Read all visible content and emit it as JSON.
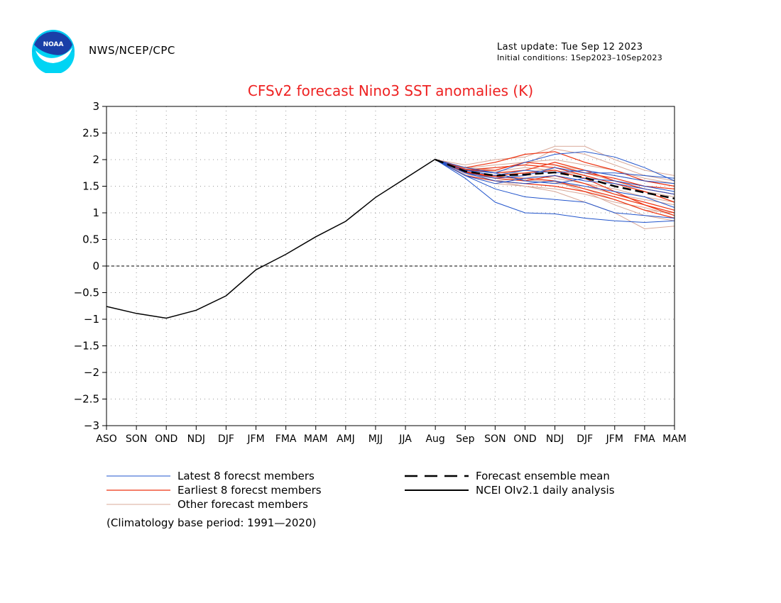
{
  "header": {
    "organization": "NWS/NCEP/CPC",
    "last_update": "Last update: Tue Sep 12 2023",
    "initial_conditions": "Initial conditions: 1Sep2023–10Sep2023",
    "logo_text": "NOAA",
    "logo_icon": "noaa-logo-icon"
  },
  "footnote": "(Climatology base period: 1991—2020)",
  "colors": {
    "title": "#ee2222",
    "latest": "#2255cc",
    "earliest": "#ee3311",
    "other": "#d8a898",
    "mean": "#000000",
    "analysis": "#000000"
  },
  "legend": {
    "placement": "bottom",
    "latest": "Latest 8 forecst members",
    "earliest": "Earliest 8 forecst members",
    "other": "Other forecast members",
    "mean": "Forecast ensemble mean",
    "analysis": "NCEI OIv2.1 daily analysis"
  },
  "chart_data": {
    "type": "line",
    "title": "CFSv2 forecast Nino3 SST anomalies (K)",
    "xlabel": "",
    "ylabel": "",
    "ylim": [
      -3,
      3
    ],
    "y_ticks": [
      3,
      2.5,
      2,
      1.5,
      1,
      0.5,
      0,
      -0.5,
      -1,
      -1.5,
      -2,
      -2.5,
      -3
    ],
    "y_tick_labels": [
      "3",
      "2.5",
      "2",
      "1.5",
      "1",
      "0.5",
      "0",
      "−0.5",
      "−1",
      "−1.5",
      "−2",
      "−2.5",
      "−3"
    ],
    "categories": [
      "ASO",
      "SON",
      "OND",
      "NDJ",
      "DJF",
      "JFM",
      "FMA",
      "MAM",
      "AMJ",
      "MJJ",
      "JJA",
      "Aug",
      "Sep",
      "SON",
      "OND",
      "NDJ",
      "DJF",
      "JFM",
      "FMA",
      "MAM"
    ],
    "grid": true,
    "zero_line": true,
    "analysis": [
      -0.76,
      -0.89,
      -0.98,
      -0.83,
      -0.56,
      -0.07,
      0.22,
      0.55,
      0.84,
      1.29,
      1.65,
      2.01
    ],
    "forecast_start_index": 11,
    "ensemble_mean": [
      2.0,
      1.78,
      1.7,
      1.72,
      1.76,
      1.66,
      1.5,
      1.38,
      1.27
    ],
    "latest_members": [
      [
        2.0,
        1.65,
        1.2,
        1.0,
        0.98,
        0.9,
        0.85,
        0.82,
        0.85
      ],
      [
        2.0,
        1.7,
        1.45,
        1.3,
        1.25,
        1.2,
        1.0,
        0.95,
        0.9
      ],
      [
        2.0,
        1.85,
        1.75,
        1.95,
        2.1,
        2.15,
        2.05,
        1.85,
        1.6
      ],
      [
        2.0,
        1.75,
        1.6,
        1.55,
        1.6,
        1.5,
        1.4,
        1.3,
        1.1
      ],
      [
        2.0,
        1.8,
        1.7,
        1.8,
        1.75,
        1.8,
        1.7,
        1.6,
        1.55
      ],
      [
        2.0,
        1.7,
        1.55,
        1.65,
        1.7,
        1.6,
        1.55,
        1.45,
        1.35
      ],
      [
        2.0,
        1.75,
        1.65,
        1.7,
        1.85,
        1.75,
        1.75,
        1.7,
        1.65
      ],
      [
        2.0,
        1.8,
        1.75,
        1.6,
        1.55,
        1.65,
        1.6,
        1.5,
        1.4
      ]
    ],
    "earliest_members": [
      [
        2.0,
        1.85,
        1.95,
        2.1,
        2.15,
        1.95,
        1.8,
        1.6,
        1.5
      ],
      [
        2.0,
        1.8,
        1.85,
        1.9,
        1.85,
        1.7,
        1.55,
        1.4,
        1.2
      ],
      [
        2.0,
        1.75,
        1.7,
        1.75,
        1.8,
        1.65,
        1.4,
        1.15,
        0.95
      ],
      [
        2.0,
        1.78,
        1.65,
        1.6,
        1.7,
        1.55,
        1.35,
        1.2,
        1.05
      ],
      [
        2.0,
        1.7,
        1.6,
        1.55,
        1.5,
        1.4,
        1.25,
        1.05,
        0.9
      ],
      [
        2.0,
        1.82,
        1.75,
        1.8,
        1.95,
        1.8,
        1.6,
        1.45,
        1.35
      ],
      [
        2.0,
        1.76,
        1.68,
        1.65,
        1.6,
        1.45,
        1.3,
        1.15,
        1.0
      ],
      [
        2.0,
        1.8,
        1.8,
        1.95,
        1.9,
        1.75,
        1.65,
        1.5,
        1.45
      ]
    ],
    "other_members": [
      [
        2.0,
        1.9,
        2.0,
        2.05,
        2.25,
        2.25,
        2.0,
        1.8,
        1.7
      ],
      [
        2.0,
        1.75,
        1.6,
        1.5,
        1.4,
        1.2,
        1.0,
        0.7,
        0.75
      ],
      [
        2.0,
        1.85,
        1.8,
        1.95,
        2.0,
        1.9,
        1.8,
        1.65,
        1.55
      ],
      [
        2.0,
        1.7,
        1.6,
        1.65,
        1.6,
        1.4,
        1.15,
        0.95,
        0.85
      ],
      [
        2.0,
        1.8,
        1.75,
        1.75,
        1.85,
        1.75,
        1.6,
        1.5,
        1.45
      ],
      [
        2.0,
        1.78,
        1.7,
        1.6,
        1.55,
        1.5,
        1.35,
        1.25,
        1.15
      ],
      [
        2.0,
        1.72,
        1.65,
        1.7,
        1.65,
        1.55,
        1.45,
        1.3,
        1.2
      ],
      [
        2.0,
        1.82,
        1.85,
        1.9,
        2.2,
        2.1,
        1.9,
        1.7,
        1.6
      ],
      [
        2.0,
        1.76,
        1.7,
        1.62,
        1.58,
        1.45,
        1.25,
        1.05,
        1.0
      ],
      [
        2.0,
        1.8,
        1.78,
        1.85,
        1.8,
        1.7,
        1.55,
        1.4,
        1.3
      ],
      [
        2.0,
        1.7,
        1.55,
        1.5,
        1.45,
        1.35,
        1.2,
        1.1,
        0.95
      ],
      [
        2.0,
        1.84,
        1.9,
        1.95,
        1.9,
        1.8,
        1.7,
        1.6,
        1.5
      ]
    ]
  }
}
